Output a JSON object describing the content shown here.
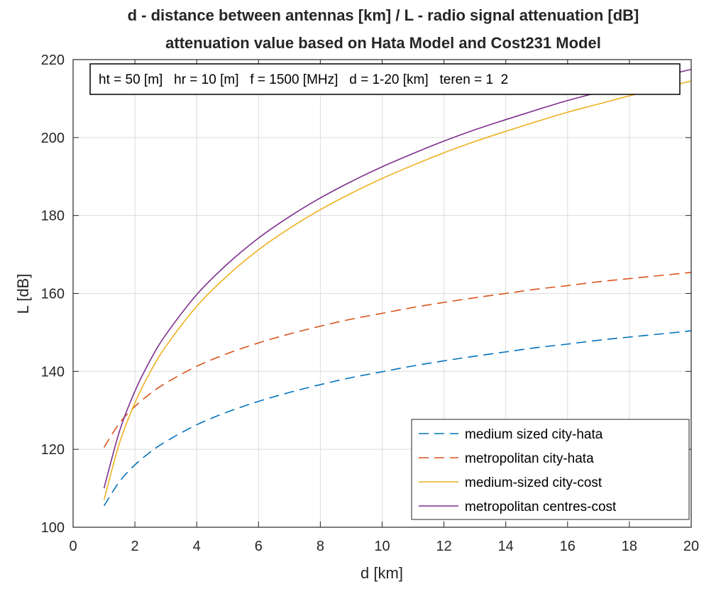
{
  "chart_data": {
    "type": "line",
    "title": "d - distance between antennas [km] / L - radio signal attenuation [dB]",
    "subtitle": "attenuation value based on Hata Model and Cost231 Model",
    "annotation": "ht = 50 [m]   hr = 10 [m]   f = 1500 [MHz]   d = 1-20 [km]   teren = 1  2",
    "xlabel": "d [km]",
    "ylabel": "L [dB]",
    "xlim": [
      0,
      20
    ],
    "ylim": [
      100,
      220
    ],
    "xticks": [
      0,
      2,
      4,
      6,
      8,
      10,
      12,
      14,
      16,
      18,
      20
    ],
    "yticks": [
      100,
      120,
      140,
      160,
      180,
      200,
      220
    ],
    "grid": true,
    "legend_position": "bottom-right",
    "x": [
      1,
      1.5,
      2,
      2.5,
      3,
      4,
      5,
      6,
      7,
      8,
      9,
      10,
      11,
      12,
      13,
      14,
      15,
      16,
      17,
      18,
      19,
      20
    ],
    "series": [
      {
        "name": "medium sized city-hata",
        "color": "#0072BD",
        "dash": "dashed",
        "values": [
          105.5,
          111.7,
          116.0,
          119.3,
          122.0,
          126.3,
          129.6,
          132.3,
          134.6,
          136.6,
          138.4,
          139.9,
          141.4,
          142.7,
          143.9,
          145.0,
          146.1,
          147.0,
          148.0,
          148.8,
          149.6,
          150.4
        ]
      },
      {
        "name": "metropolitan city-hata",
        "color": "#D95319",
        "dash": "dashed",
        "values": [
          120.5,
          126.7,
          131.0,
          134.3,
          137.0,
          141.3,
          144.6,
          147.3,
          149.6,
          151.6,
          153.4,
          154.9,
          156.4,
          157.7,
          158.9,
          160.0,
          161.1,
          162.0,
          163.0,
          163.8,
          164.6,
          165.4
        ]
      },
      {
        "name": "medium-sized city-cost",
        "color": "#EDB120",
        "dash": "solid",
        "values": [
          107.0,
          121.6,
          131.9,
          139.9,
          146.4,
          156.7,
          164.6,
          171.2,
          176.7,
          181.5,
          185.7,
          189.5,
          192.9,
          196.1,
          199.0,
          201.6,
          204.1,
          206.5,
          208.6,
          210.7,
          212.6,
          214.5
        ]
      },
      {
        "name": "metropolitan centres-cost",
        "color": "#7E2F8E",
        "dash": "solid",
        "values": [
          110.0,
          124.6,
          134.9,
          142.9,
          149.4,
          159.7,
          167.6,
          174.2,
          179.7,
          184.5,
          188.7,
          192.5,
          195.9,
          199.1,
          202.0,
          204.6,
          207.1,
          209.5,
          211.6,
          213.7,
          215.6,
          217.5
        ]
      }
    ]
  }
}
